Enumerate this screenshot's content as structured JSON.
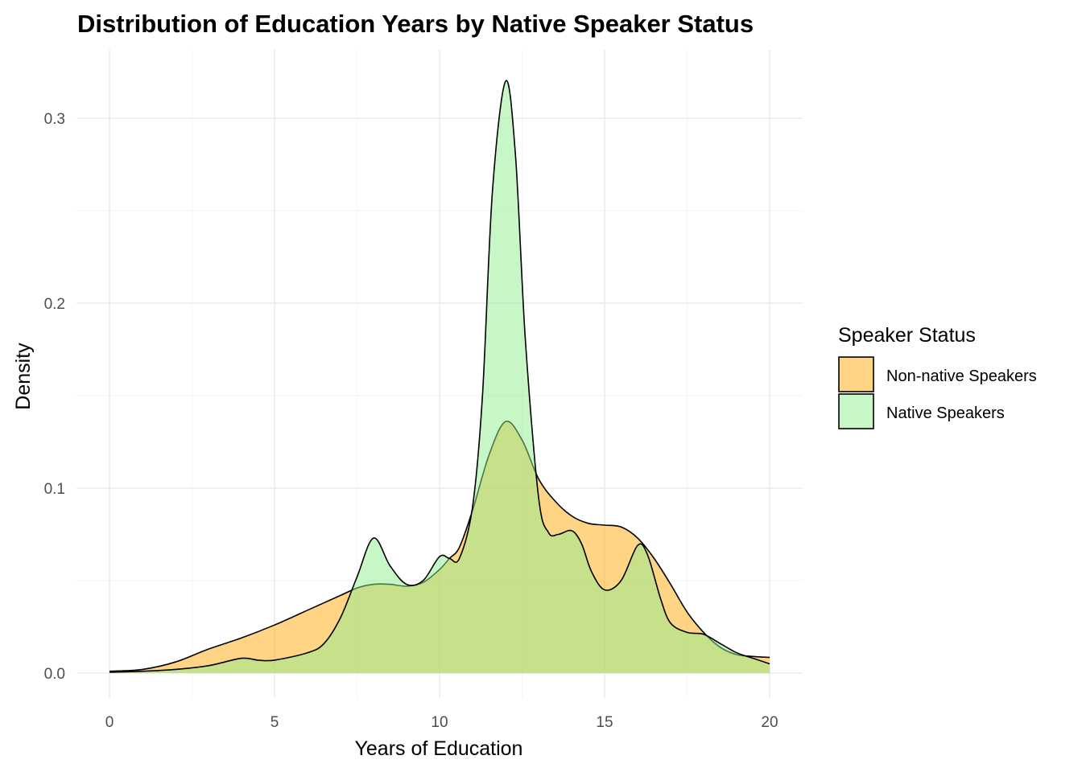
{
  "chart_data": {
    "type": "area",
    "title": "Distribution of Education Years by Native Speaker Status",
    "xlabel": "Years of Education",
    "ylabel": "Density",
    "xlim": [
      0,
      20
    ],
    "ylim": [
      0,
      0.32
    ],
    "x_ticks": [
      0,
      5,
      10,
      15,
      20
    ],
    "x_tick_labels": [
      "0",
      "5",
      "10",
      "15",
      "20"
    ],
    "y_ticks": [
      0,
      0.1,
      0.2,
      0.3
    ],
    "y_tick_labels": [
      "0.0",
      "0.1",
      "0.2",
      "0.3"
    ],
    "grid": true,
    "legend": {
      "title": "Speaker Status",
      "position": "right",
      "entries": [
        "Non-native Speakers",
        "Native Speakers"
      ]
    },
    "series": [
      {
        "name": "Non-native Speakers",
        "color": "#FFB733",
        "fill_opacity": 0.6,
        "x": [
          0,
          1,
          2,
          3,
          4,
          5,
          6,
          7,
          7.5,
          8,
          8.5,
          9,
          9.5,
          10,
          10.3,
          10.6,
          11,
          11.5,
          12,
          12.5,
          13,
          13.5,
          14,
          14.5,
          15,
          15.5,
          16,
          16.5,
          17,
          17.5,
          18,
          18.5,
          19,
          19.5,
          20
        ],
        "values": [
          0.001,
          0.002,
          0.006,
          0.013,
          0.019,
          0.026,
          0.034,
          0.042,
          0.046,
          0.048,
          0.048,
          0.047,
          0.049,
          0.056,
          0.062,
          0.068,
          0.088,
          0.118,
          0.136,
          0.126,
          0.105,
          0.093,
          0.085,
          0.081,
          0.08,
          0.079,
          0.073,
          0.062,
          0.048,
          0.033,
          0.022,
          0.014,
          0.01,
          0.009,
          0.0085
        ]
      },
      {
        "name": "Native Speakers",
        "color": "#90EE90",
        "fill_opacity": 0.5,
        "x": [
          0,
          1,
          2,
          3,
          4,
          4.5,
          5,
          6,
          6.5,
          7,
          7.5,
          8,
          8.5,
          9,
          9.5,
          10,
          10.3,
          10.6,
          11,
          11.3,
          11.6,
          12,
          12.3,
          12.6,
          13,
          13.3,
          13.6,
          14,
          14.3,
          14.6,
          15,
          15.5,
          16,
          16.3,
          16.7,
          17,
          17.5,
          18,
          18.5,
          19,
          19.5,
          20
        ],
        "values": [
          0.0005,
          0.001,
          0.002,
          0.004,
          0.008,
          0.007,
          0.007,
          0.011,
          0.016,
          0.03,
          0.052,
          0.073,
          0.058,
          0.048,
          0.05,
          0.063,
          0.062,
          0.062,
          0.09,
          0.15,
          0.26,
          0.32,
          0.28,
          0.18,
          0.095,
          0.076,
          0.075,
          0.077,
          0.07,
          0.055,
          0.045,
          0.05,
          0.069,
          0.064,
          0.04,
          0.027,
          0.022,
          0.021,
          0.016,
          0.011,
          0.008,
          0.005
        ]
      }
    ]
  }
}
